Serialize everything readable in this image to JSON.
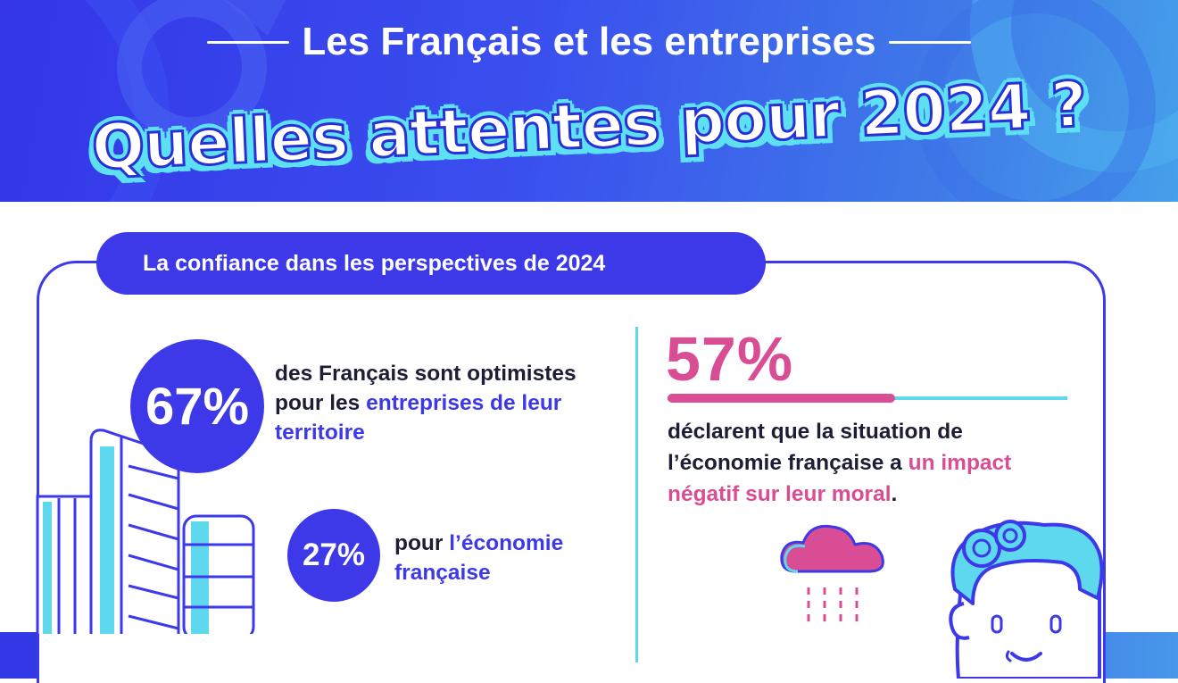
{
  "header": {
    "subtitle": "Les Français et les entreprises",
    "title": "Quelles attentes pour 2024 ?"
  },
  "section": {
    "title": "La confiance dans les perspectives de 2024"
  },
  "stats": {
    "optimism_territory": {
      "value": "67%",
      "line1": "des Français sont optimistes",
      "line2_prefix": "pour les ",
      "line2_highlight": "entreprises de leur",
      "line3_highlight": "territoire"
    },
    "optimism_economy": {
      "value": "27%",
      "line1_prefix": "pour ",
      "line1_highlight": "l’économie",
      "line2_highlight": "française"
    },
    "negative_impact": {
      "value": "57%",
      "percent": 57,
      "line1": "déclarent que la situation de",
      "line2_prefix": "l’économie française a ",
      "line2_highlight": "un impact",
      "line3_highlight": "négatif sur leur moral",
      "line3_suffix": "."
    }
  },
  "icons": {
    "buildings": "buildings-illustration",
    "cloud": "rain-cloud-icon",
    "face": "worried-face-illustration"
  },
  "colors": {
    "primary_blue": "#3d39e8",
    "accent_pink": "#d94d94",
    "accent_cyan": "#5dd8ec",
    "text_dark": "#1d1d35"
  }
}
